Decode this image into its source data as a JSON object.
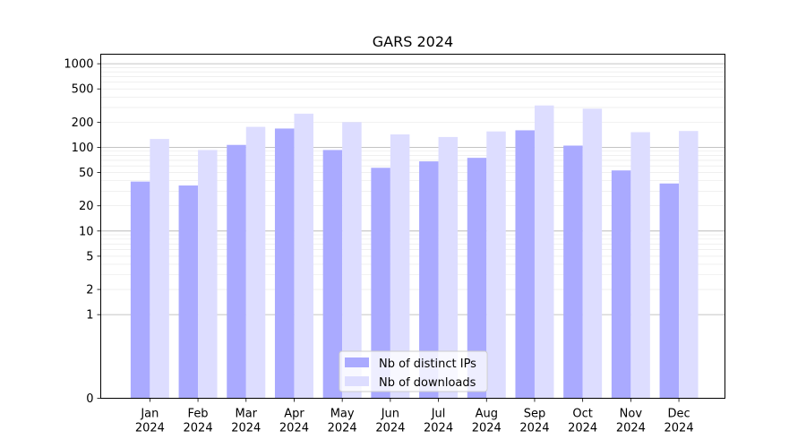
{
  "chart_data": {
    "type": "bar",
    "title": "GARS 2024",
    "xlabel": "",
    "ylabel": "",
    "y_scale": "symlog",
    "ylim": [
      0,
      1300
    ],
    "y_ticks": [
      0,
      1,
      2,
      5,
      10,
      20,
      50,
      100,
      200,
      500,
      1000
    ],
    "y_tick_labels": [
      "0",
      "1",
      "2",
      "5",
      "10",
      "20",
      "50",
      "100",
      "200",
      "500",
      "1000"
    ],
    "categories": [
      [
        "Jan",
        "2024"
      ],
      [
        "Feb",
        "2024"
      ],
      [
        "Mar",
        "2024"
      ],
      [
        "Apr",
        "2024"
      ],
      [
        "May",
        "2024"
      ],
      [
        "Jun",
        "2024"
      ],
      [
        "Jul",
        "2024"
      ],
      [
        "Aug",
        "2024"
      ],
      [
        "Sep",
        "2024"
      ],
      [
        "Oct",
        "2024"
      ],
      [
        "Nov",
        "2024"
      ],
      [
        "Dec",
        "2024"
      ]
    ],
    "series": [
      {
        "name": "Nb of distinct IPs",
        "color": "#aaaaff",
        "values": [
          39,
          35,
          107,
          168,
          93,
          57,
          68,
          75,
          160,
          105,
          53,
          37
        ]
      },
      {
        "name": "Nb of downloads",
        "color": "#ddddff",
        "values": [
          126,
          93,
          176,
          253,
          200,
          143,
          133,
          155,
          317,
          290,
          152,
          157
        ]
      }
    ],
    "grid": true,
    "legend_position": "bottom-center"
  }
}
